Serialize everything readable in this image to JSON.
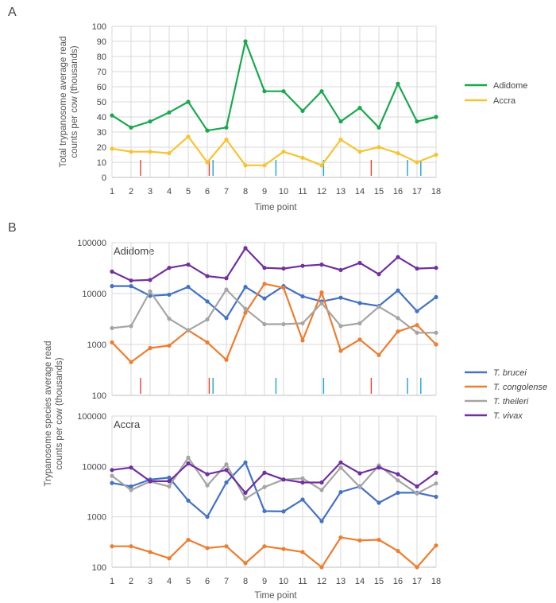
{
  "chart_data": [
    {
      "panel": "A",
      "type": "line",
      "ylabel": "Total trypanosome average read counts per cow (thousands)",
      "xlabel": "Time point",
      "x": [
        1,
        2,
        3,
        4,
        5,
        6,
        7,
        8,
        9,
        10,
        11,
        12,
        13,
        14,
        15,
        16,
        17,
        18
      ],
      "ylim": [
        0,
        100
      ],
      "y_ticks": [
        0,
        10,
        20,
        30,
        40,
        50,
        60,
        70,
        80,
        90,
        100
      ],
      "legend_position": "right",
      "series": [
        {
          "name": "Adidome",
          "color": "#1aa84f",
          "values": [
            41,
            33,
            37,
            43,
            50,
            31,
            33,
            90,
            57,
            57,
            44,
            57,
            37,
            46,
            33,
            62,
            37,
            40
          ]
        },
        {
          "name": "Accra",
          "color": "#f7c431",
          "values": [
            19,
            17,
            17,
            16,
            27,
            10,
            25,
            8,
            8,
            17,
            13,
            8,
            25,
            17,
            20,
            16,
            10,
            15
          ]
        }
      ],
      "event_markers": {
        "red": {
          "color": "#e0452a",
          "positions": [
            2.5,
            6.1,
            14.6
          ]
        },
        "blue": {
          "color": "#1aa3d6",
          "positions": [
            6.3,
            9.6,
            12.1,
            16.5,
            17.2
          ]
        }
      }
    },
    {
      "panel": "B",
      "title": "Adidome",
      "type": "line",
      "scale": "log",
      "x": [
        1,
        2,
        3,
        4,
        5,
        6,
        7,
        8,
        9,
        10,
        11,
        12,
        13,
        14,
        15,
        16,
        17,
        18
      ],
      "ylim": [
        100,
        100000
      ],
      "y_ticks": [
        "100",
        "1000",
        "10000",
        "100000"
      ],
      "series": [
        {
          "name": "T. brucei",
          "color": "#4472c4",
          "values": [
            14000,
            14000,
            9000,
            9500,
            13500,
            7000,
            3300,
            13500,
            8000,
            14000,
            8800,
            7000,
            8300,
            6500,
            5700,
            11500,
            4500,
            8500
          ]
        },
        {
          "name": "T. congolense",
          "color": "#ed7d31",
          "values": [
            1100,
            450,
            850,
            950,
            1900,
            1100,
            500,
            4200,
            15500,
            13000,
            1200,
            10500,
            750,
            1250,
            620,
            1800,
            2400,
            1000
          ]
        },
        {
          "name": "T. theileri",
          "color": "#a5a5a5",
          "values": [
            2100,
            2300,
            11000,
            3200,
            1900,
            3100,
            12000,
            5000,
            2500,
            2500,
            2600,
            6500,
            2300,
            2600,
            5500,
            3300,
            1700,
            1700
          ]
        },
        {
          "name": "T. vivax",
          "color": "#7030a0",
          "values": [
            27000,
            18000,
            18500,
            32000,
            37000,
            22000,
            20000,
            78000,
            32000,
            31000,
            35000,
            37000,
            29000,
            40000,
            24000,
            52000,
            31000,
            32000
          ]
        }
      ],
      "event_markers": {
        "red": {
          "color": "#e0452a",
          "positions": [
            2.5,
            6.1,
            14.6
          ]
        },
        "blue": {
          "color": "#1aa3d6",
          "positions": [
            6.3,
            9.6,
            12.1,
            16.5,
            17.2
          ]
        }
      }
    },
    {
      "panel": "B",
      "title": "Accra",
      "type": "line",
      "scale": "log",
      "x": [
        1,
        2,
        3,
        4,
        5,
        6,
        7,
        8,
        9,
        10,
        11,
        12,
        13,
        14,
        15,
        16,
        17,
        18
      ],
      "ylim": [
        100,
        100000
      ],
      "y_ticks": [
        "100",
        "1000",
        "10000",
        "100000"
      ],
      "xlabel": "Time point",
      "ylabel": "Trypanosome species  average read counts per cow (thousands)",
      "series": [
        {
          "name": "T. brucei",
          "color": "#4472c4",
          "values": [
            4700,
            4000,
            5500,
            6000,
            2100,
            1000,
            4800,
            12000,
            1300,
            1280,
            2200,
            820,
            3100,
            4000,
            1900,
            3000,
            3000,
            2500
          ]
        },
        {
          "name": "T. congolense",
          "color": "#ed7d31",
          "values": [
            260,
            260,
            200,
            150,
            350,
            240,
            260,
            120,
            260,
            230,
            200,
            100,
            390,
            340,
            350,
            210,
            100,
            270
          ]
        },
        {
          "name": "T. theileri",
          "color": "#a5a5a5",
          "values": [
            6500,
            3400,
            5000,
            4000,
            15000,
            4200,
            11000,
            2300,
            3900,
            5500,
            5800,
            3400,
            9500,
            3900,
            10500,
            5300,
            2900,
            4600
          ]
        },
        {
          "name": "T. vivax",
          "color": "#7030a0",
          "values": [
            8500,
            9500,
            5100,
            5100,
            11500,
            7000,
            8500,
            3000,
            7500,
            5500,
            4800,
            4800,
            12000,
            7300,
            9500,
            7000,
            4000,
            7500
          ]
        }
      ]
    }
  ],
  "panels": {
    "a_letter": "A",
    "b_letter": "B",
    "a_ylabel_line1": "Total trypanosome average read",
    "a_ylabel_line2": "counts per cow (thousands)",
    "a_xlabel": "Time point",
    "b_title_top": "Adidome",
    "b_title_bottom": "Accra",
    "b_ylabel_line1": "Trypanosome species  average read",
    "b_ylabel_line2": "counts per cow (thousands)",
    "b_xlabel": "Time point"
  },
  "legend_a": [
    {
      "label": "Adidome",
      "color": "#1aa84f"
    },
    {
      "label": "Accra",
      "color": "#f7c431"
    }
  ],
  "legend_b": [
    {
      "label": "T. brucei",
      "color": "#4472c4"
    },
    {
      "label": "T. congolense",
      "color": "#ed7d31"
    },
    {
      "label": "T. theileri",
      "color": "#a5a5a5"
    },
    {
      "label": "T. vivax",
      "color": "#7030a0"
    }
  ]
}
